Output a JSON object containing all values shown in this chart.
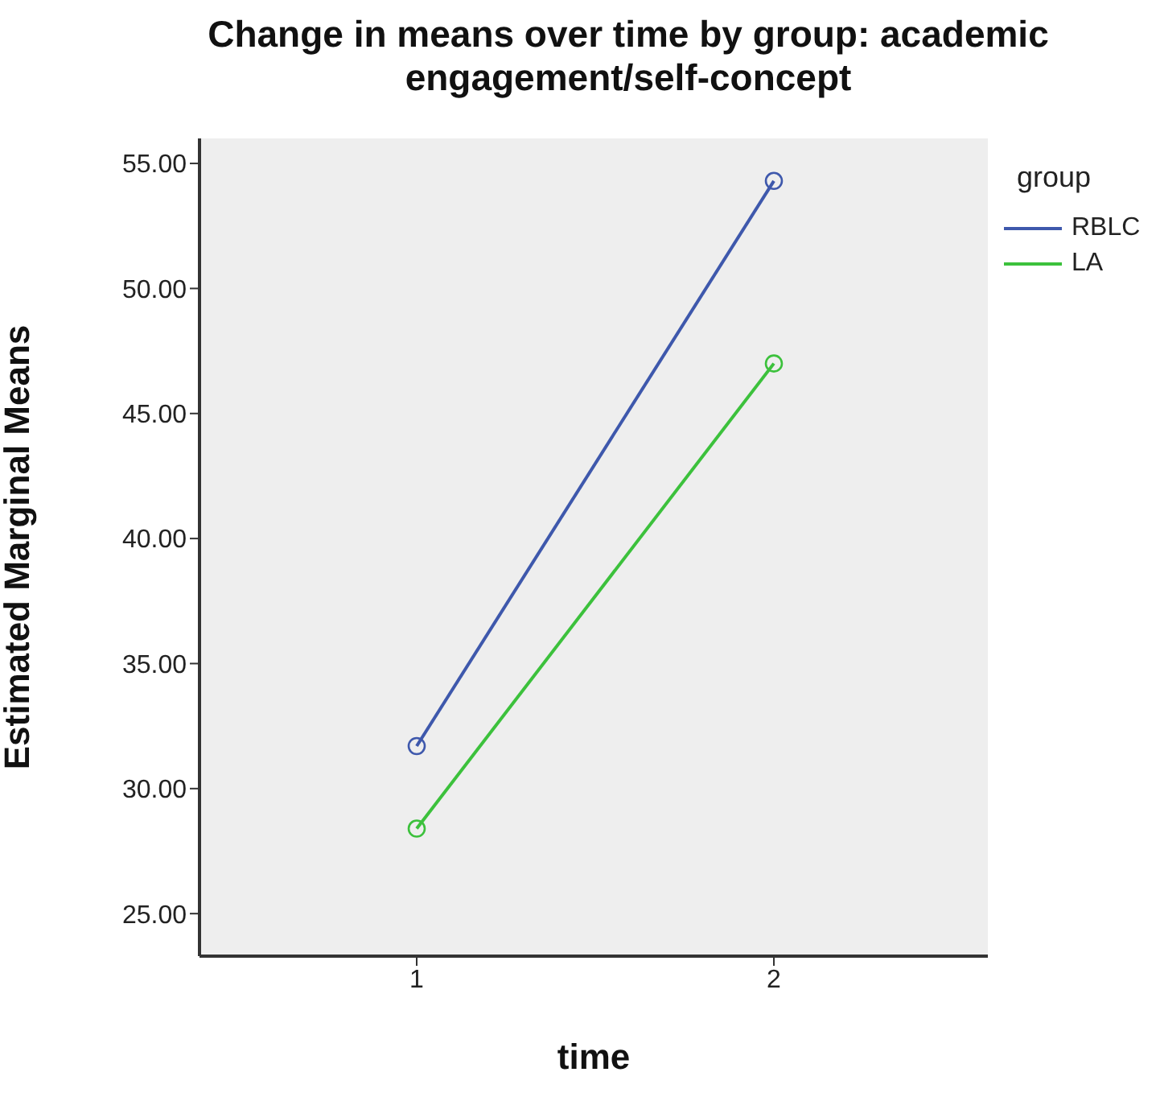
{
  "chart_data": {
    "type": "line",
    "title": "Change in means over time by group: academic engagement/self-concept",
    "xlabel": "time",
    "ylabel": "Estimated Marginal Means",
    "legend_title": "group",
    "categories": [
      "1",
      "2"
    ],
    "series": [
      {
        "name": "RBLC",
        "color": "#3e58ac",
        "values": [
          31.7,
          54.3
        ]
      },
      {
        "name": "LA",
        "color": "#3cc13c",
        "values": [
          28.4,
          47.0
        ]
      }
    ],
    "ylim": [
      23.3,
      56
    ],
    "yticks": [
      {
        "value": 25,
        "label": "25.00"
      },
      {
        "value": 30,
        "label": "30.00"
      },
      {
        "value": 35,
        "label": "35.00"
      },
      {
        "value": 40,
        "label": "40.00"
      },
      {
        "value": 45,
        "label": "45.00"
      },
      {
        "value": 50,
        "label": "50.00"
      },
      {
        "value": 55,
        "label": "55.00"
      }
    ],
    "grid": false,
    "legend": "right",
    "marker": "circle",
    "line_style": "solid"
  }
}
